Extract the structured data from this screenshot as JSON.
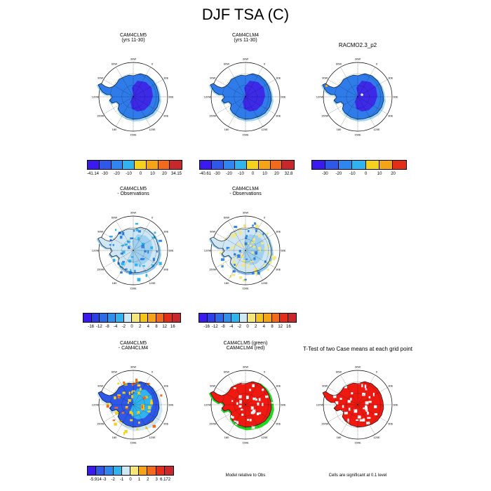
{
  "title": "DJF TSA (C)",
  "colors": {
    "c10": [
      "#3b1af0",
      "#2d58e8",
      "#2f86ee",
      "#31b3f0",
      "#cde9f6",
      "#f5d21e",
      "#f5a418",
      "#f26a1a",
      "#e42e18",
      "#c9272b"
    ],
    "map_land_cold": "#3d2ae8",
    "map_land_mid": "#2f7be9",
    "map_land_edge": "#39aef0",
    "map_diff_base": "#8cc7ef",
    "map_diff_light": "#cfe6f4",
    "map_diff_yellow": "#f6e77b",
    "sig_red": "#ee1a12",
    "sig_green": "#22d622"
  },
  "panels": [
    {
      "title": [
        "CAM4CLM5",
        "(yrs 11-30)"
      ]
    },
    {
      "title": [
        "CAM4CLM4",
        "(yrs 11-30)"
      ]
    },
    {
      "title": [
        "RACMO2.3_p2"
      ]
    },
    {
      "title": [
        "CAM4CLM5",
        "- Observations"
      ]
    },
    {
      "title": [
        "CAM4CLM4",
        "- Observations"
      ]
    },
    {
      "title": [
        "CAM4CLM5",
        "- CAM4CLM4"
      ]
    },
    {
      "title": [
        "CAM4CLM5 (green)",
        "CAM4CLM4 (red)"
      ]
    },
    {
      "title": [
        "T-Test of two Case means at each grid point"
      ]
    }
  ],
  "lon_labels": [
    "30W",
    "0",
    "30E",
    "60E",
    "90E",
    "120E",
    "150E",
    "180",
    "150W",
    "120W",
    "90W",
    "60W"
  ],
  "colorbars": [
    {
      "ticks": [
        "-41.14",
        "-30",
        "-20",
        "-10",
        "0",
        "10",
        "20",
        "34.15"
      ]
    },
    {
      "ticks": [
        "-40.61",
        "-30",
        "-20",
        "-10",
        "0",
        "10",
        "20",
        "32.8"
      ]
    },
    {
      "ticks": [
        "-30",
        "-20",
        "-10",
        "0",
        "10",
        "20"
      ]
    },
    {
      "ticks": [
        "-16",
        "-12",
        "-8",
        "-4",
        "-2",
        "0",
        "2",
        "4",
        "8",
        "12",
        "16"
      ]
    },
    {
      "ticks": [
        "-16",
        "-12",
        "-8",
        "-4",
        "-2",
        "0",
        "2",
        "4",
        "8",
        "12",
        "16"
      ]
    },
    {
      "ticks": [
        "-5.914",
        "-3",
        "-2",
        "-1",
        "0",
        "1",
        "2",
        "3",
        "6.172"
      ]
    }
  ],
  "notes": {
    "model_relative": "Model relative to Obs",
    "significance": "Cells are significant at 0.1 level"
  },
  "chart_data": {
    "type": "heatmap",
    "title": "DJF TSA (C)",
    "variable": "TSA",
    "season": "DJF",
    "units": "C",
    "projection": "south polar stereographic",
    "longitude_labels": [
      "30W",
      "0",
      "30E",
      "60E",
      "90E",
      "120E",
      "150E",
      "180",
      "150W",
      "120W",
      "90W",
      "60W"
    ],
    "panels": [
      {
        "name": "CAM4CLM5 (yrs 11-30)",
        "min": -41.14,
        "max": 34.15,
        "levels": [
          -41.14,
          -30,
          -20,
          -10,
          0,
          10,
          20,
          34.15
        ]
      },
      {
        "name": "CAM4CLM4 (yrs 11-30)",
        "min": -40.61,
        "max": 32.8,
        "levels": [
          -40.61,
          -30,
          -20,
          -10,
          0,
          10,
          20,
          32.8
        ]
      },
      {
        "name": "RACMO2.3_p2",
        "levels": [
          -30,
          -20,
          -10,
          0,
          10,
          20
        ]
      },
      {
        "name": "CAM4CLM5 - Observations",
        "levels": [
          -16,
          -12,
          -8,
          -4,
          -2,
          0,
          2,
          4,
          8,
          12,
          16
        ]
      },
      {
        "name": "CAM4CLM4 - Observations",
        "levels": [
          -16,
          -12,
          -8,
          -4,
          -2,
          0,
          2,
          4,
          8,
          12,
          16
        ]
      },
      {
        "name": "CAM4CLM5 - CAM4CLM4",
        "min": -5.914,
        "max": 6.172,
        "levels": [
          -5.914,
          -3,
          -2,
          -1,
          0,
          1,
          2,
          3,
          6.172
        ]
      },
      {
        "name": "CAM4CLM5 (green) CAM4CLM4 (red)",
        "note": "Model relative to Obs"
      },
      {
        "name": "T-Test of two Case means at each grid point",
        "note": "Cells are significant at 0.1 level"
      }
    ]
  }
}
